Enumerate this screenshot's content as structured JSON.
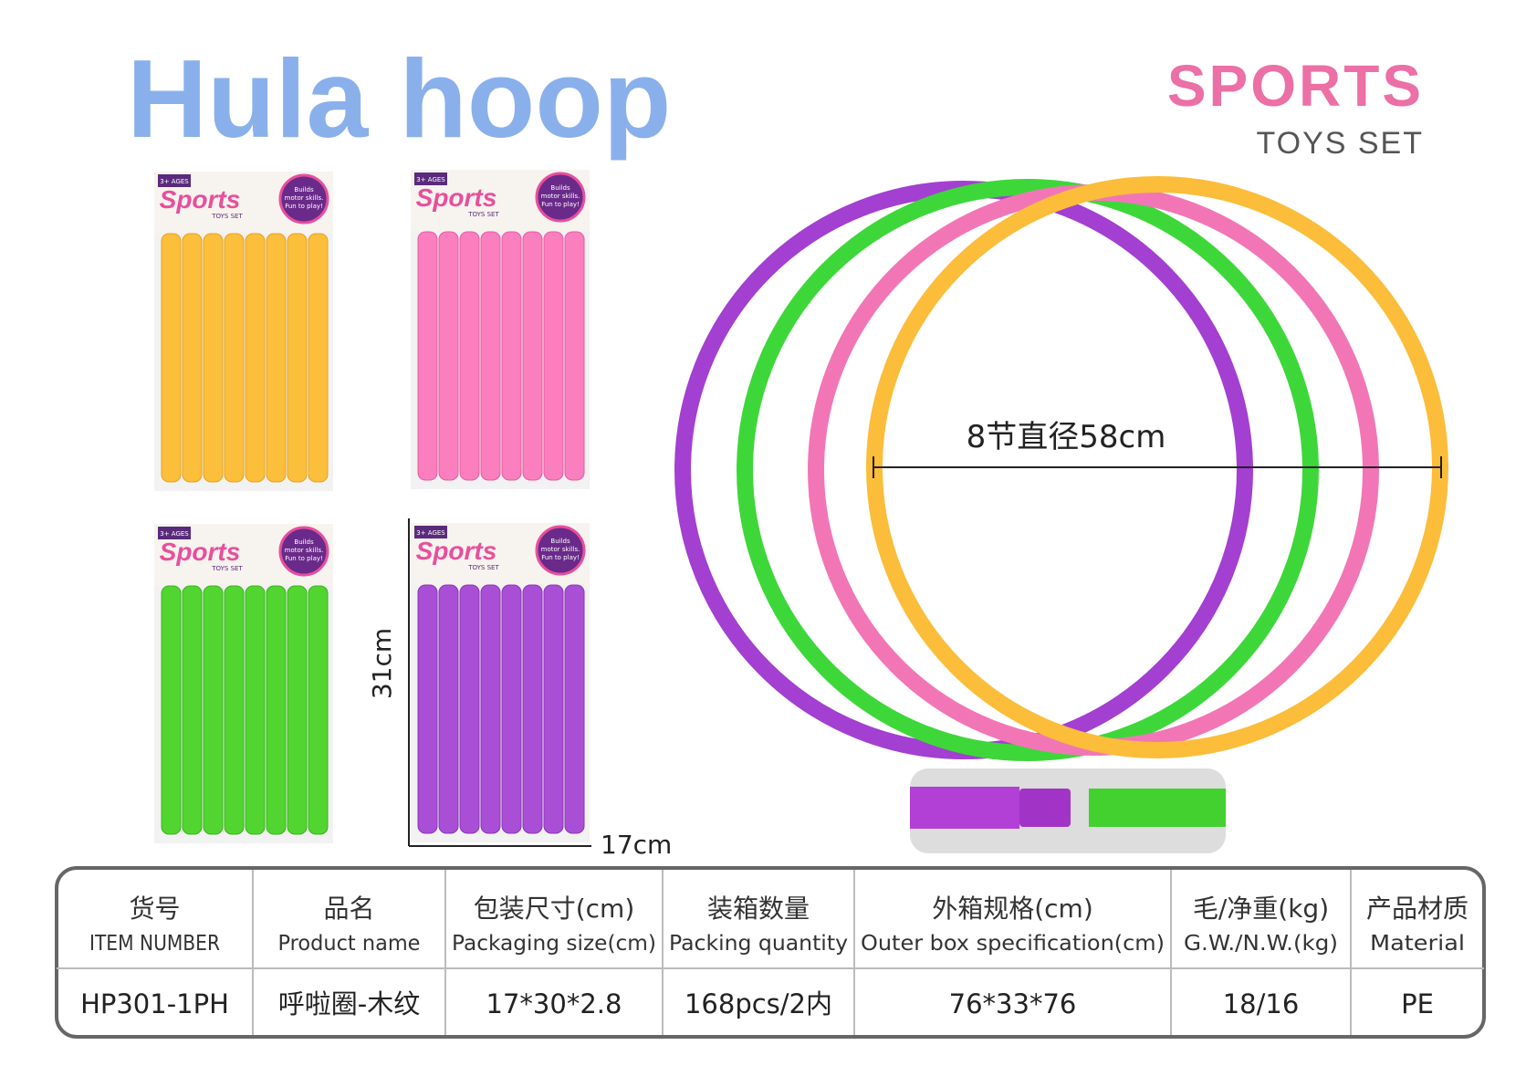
{
  "header": {
    "title": "Hula hoop",
    "brand": "SPORTS",
    "brand_subtitle": "TOYS SET"
  },
  "package_label": {
    "age": "3+ AGES",
    "brand": "Sports",
    "subtitle": "TOYS SET",
    "badge": [
      "Builds",
      "motor skills.",
      "Fun to play!"
    ]
  },
  "dimensions": {
    "height": "31cm",
    "width": "17cm",
    "hoop": "8节直径58cm"
  },
  "table": {
    "headers": [
      [
        "货号",
        "ITEM NUMBER"
      ],
      [
        "品名",
        "Product name"
      ],
      [
        "包装尺寸(cm)",
        "Packaging size(cm)"
      ],
      [
        "装箱数量",
        "Packing quantity"
      ],
      [
        "外箱规格(cm)",
        "Outer box specification(cm)"
      ],
      [
        "毛/净重(kg)",
        "G.W./N.W.(kg)"
      ],
      [
        "产品材质",
        "Material"
      ]
    ],
    "rows": [
      [
        "HP301-1PH",
        "呼啦圈-木纹",
        "17*30*2.8",
        "168pcs/2内",
        "76*33*76",
        "18/16",
        "PE"
      ]
    ]
  }
}
